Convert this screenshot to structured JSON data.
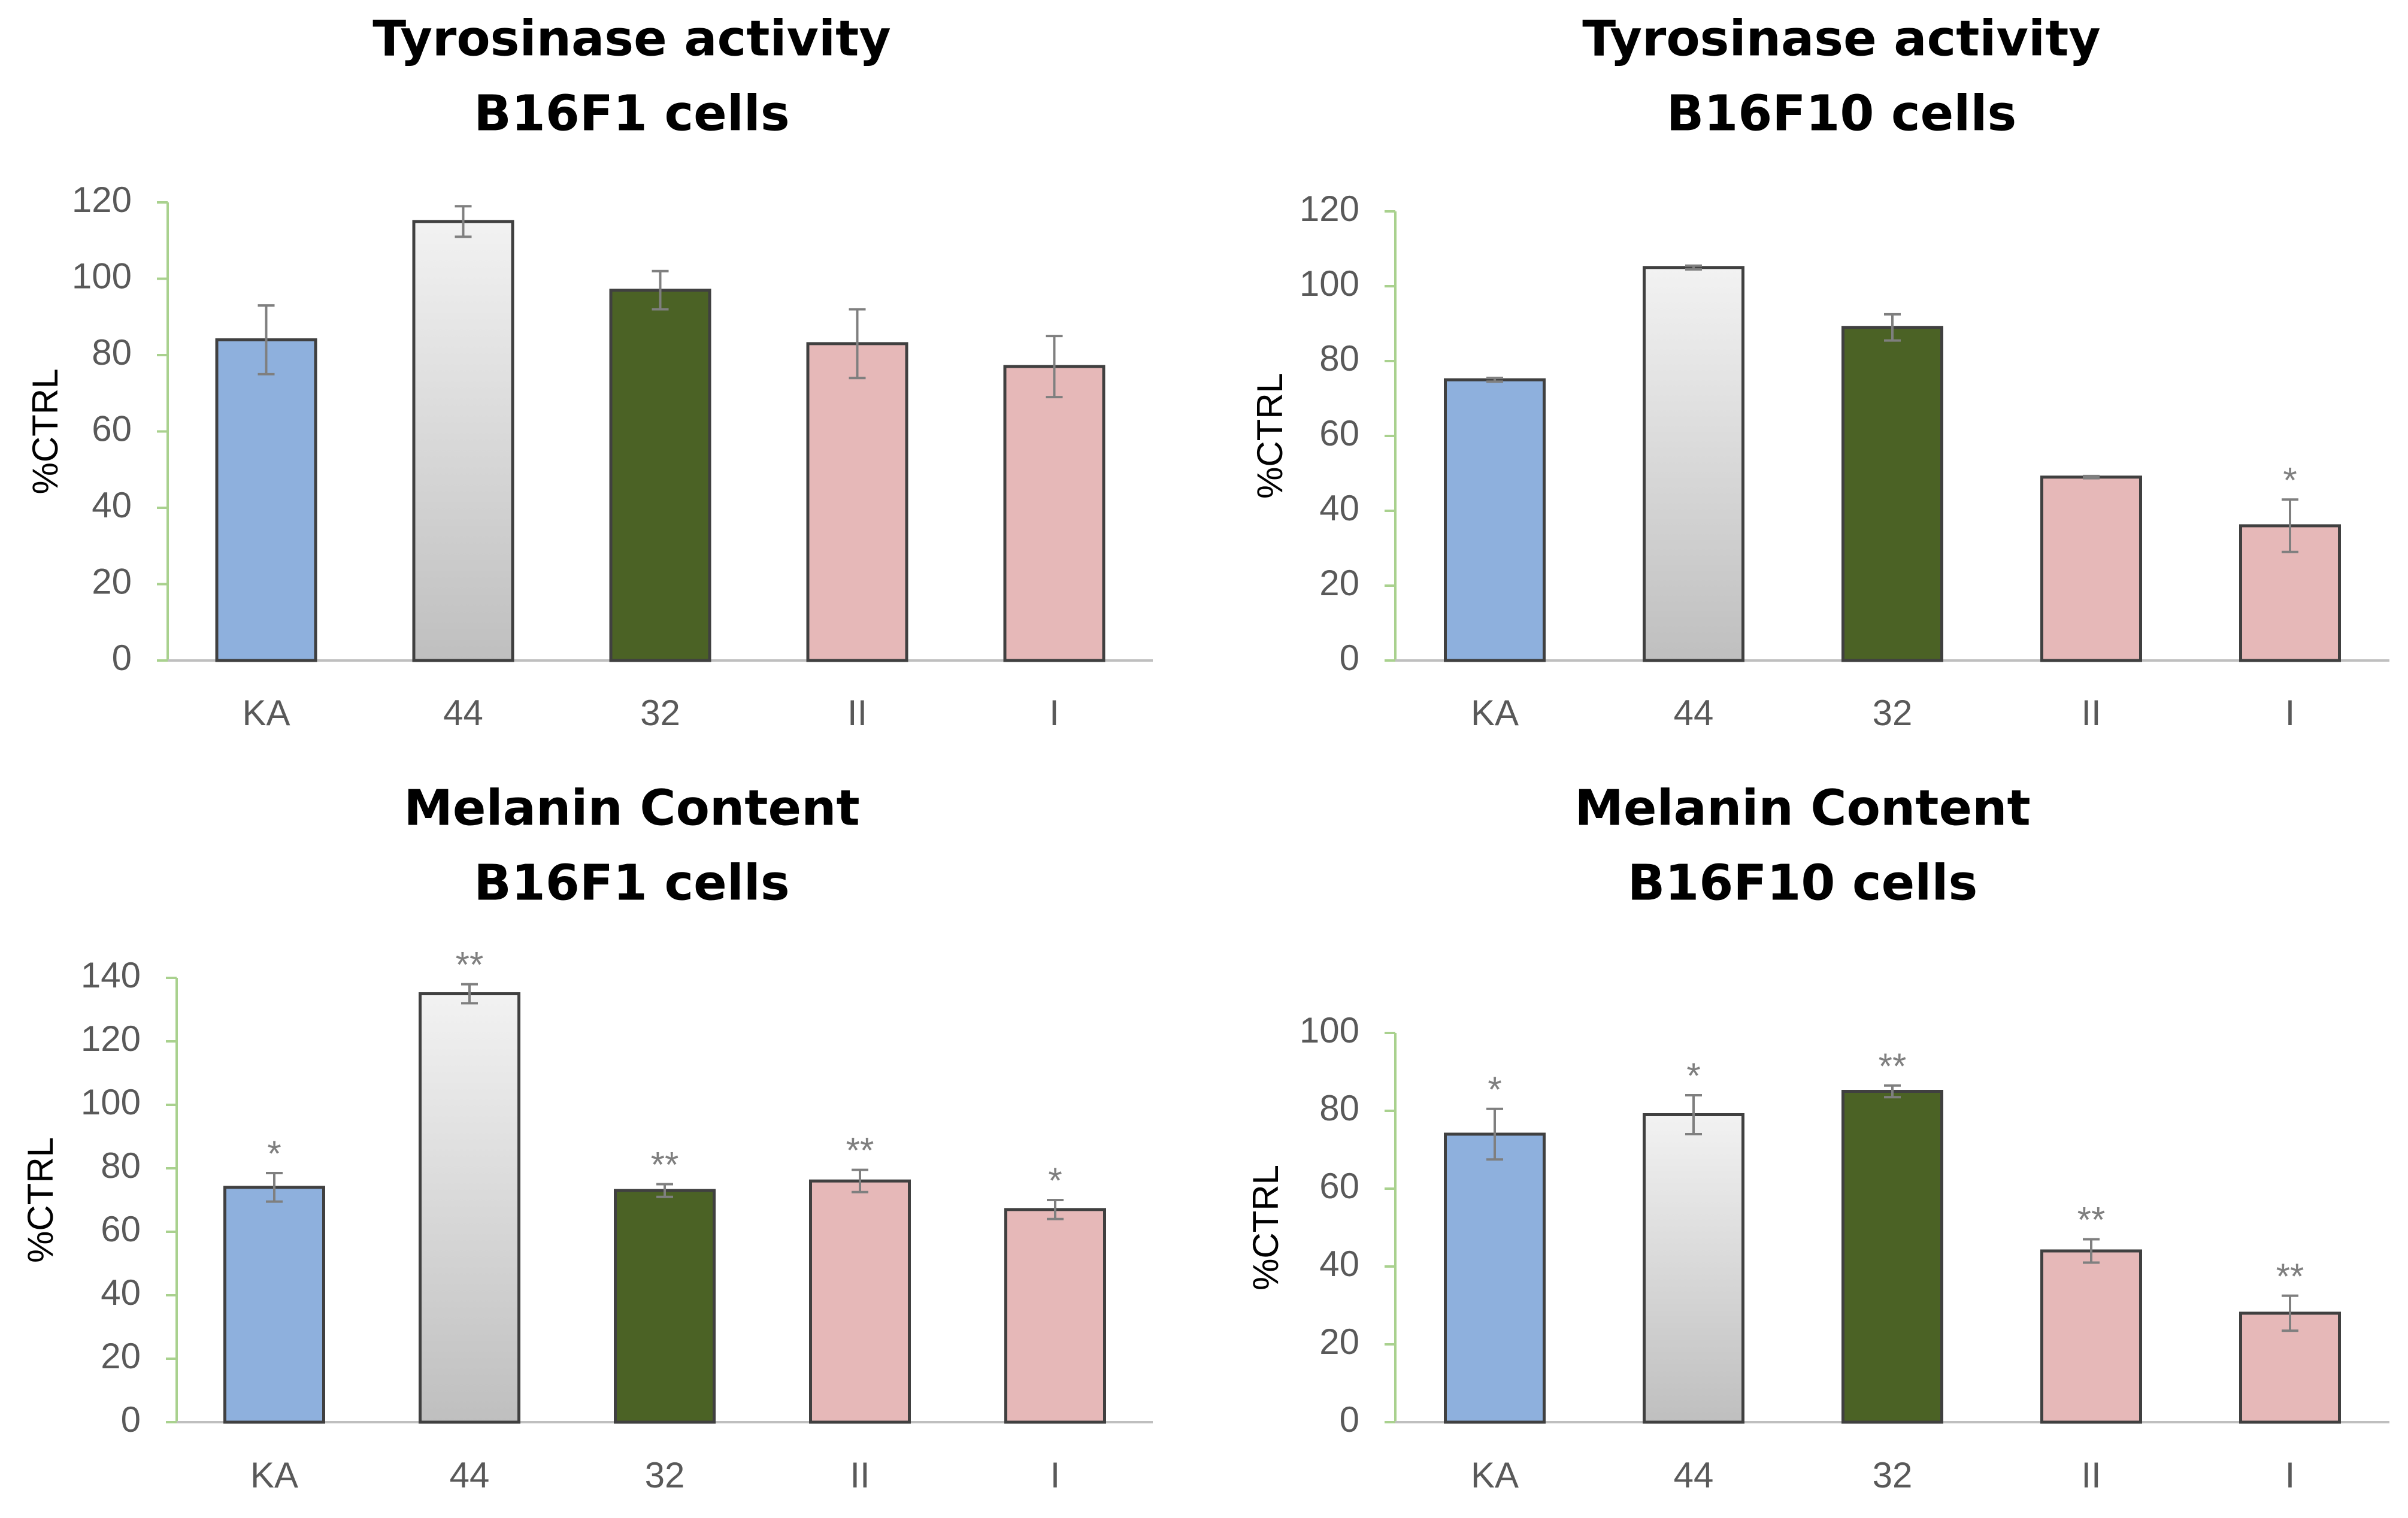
{
  "colors": {
    "KA": "#8eb0dd",
    "44_top": "#f2f2f2",
    "44_bottom": "#bfbfbf",
    "32": "#4b6225",
    "II": "#e6b8b8",
    "I": "#e6b8b8",
    "axis": "#a9d18e",
    "baseline": "#bfbfbf",
    "bar_outline": "#404040",
    "error_bar": "#7f7f7f"
  },
  "chart_data": [
    {
      "type": "bar",
      "title": [
        "Tyrosinase activity",
        "B16F1 cells"
      ],
      "ylabel": "%CTRL",
      "ylim": [
        0,
        120
      ],
      "yticks": [
        "0",
        "20",
        "40",
        "60",
        "80",
        "100",
        "120"
      ],
      "categories": [
        "KA",
        "44",
        "32",
        "II",
        "I"
      ],
      "values": [
        84,
        115,
        97,
        83,
        77
      ],
      "errors": [
        9,
        4,
        5,
        9,
        8
      ],
      "significance": [
        "",
        "",
        "",
        "",
        ""
      ]
    },
    {
      "type": "bar",
      "title": [
        "Tyrosinase activity",
        "B16F10 cells"
      ],
      "ylabel": "%CTRL",
      "ylim": [
        0,
        120
      ],
      "yticks": [
        "0",
        "20",
        "40",
        "60",
        "80",
        "100",
        "120"
      ],
      "categories": [
        "KA",
        "44",
        "32",
        "II",
        "I"
      ],
      "values": [
        75,
        105,
        89,
        49,
        36
      ],
      "errors": [
        0.5,
        0.5,
        3.5,
        0.3,
        7
      ],
      "significance": [
        "",
        "",
        "",
        "",
        "*"
      ]
    },
    {
      "type": "bar",
      "title": [
        "Melanin Content",
        "B16F1 cells"
      ],
      "ylabel": "%CTRL",
      "ylim": [
        0,
        140
      ],
      "yticks": [
        "0",
        "20",
        "40",
        "60",
        "80",
        "100",
        "120",
        "140"
      ],
      "categories": [
        "KA",
        "44",
        "32",
        "II",
        "I"
      ],
      "values": [
        74,
        135,
        73,
        76,
        67
      ],
      "errors": [
        4.5,
        3,
        2,
        3.5,
        3
      ],
      "significance": [
        "*",
        "**",
        "**",
        "**",
        "*"
      ]
    },
    {
      "type": "bar",
      "title": [
        "Melanin Content",
        "B16F10 cells"
      ],
      "ylabel": "%CTRL",
      "ylim": [
        0,
        100
      ],
      "yticks": [
        "0",
        "20",
        "40",
        "60",
        "80",
        "100"
      ],
      "categories": [
        "KA",
        "44",
        "32",
        "II",
        "I"
      ],
      "values": [
        74,
        79,
        85,
        44,
        28
      ],
      "errors": [
        6.5,
        5,
        1.5,
        3,
        4.5
      ],
      "significance": [
        "*",
        "*",
        "**",
        "**",
        "**"
      ]
    }
  ]
}
